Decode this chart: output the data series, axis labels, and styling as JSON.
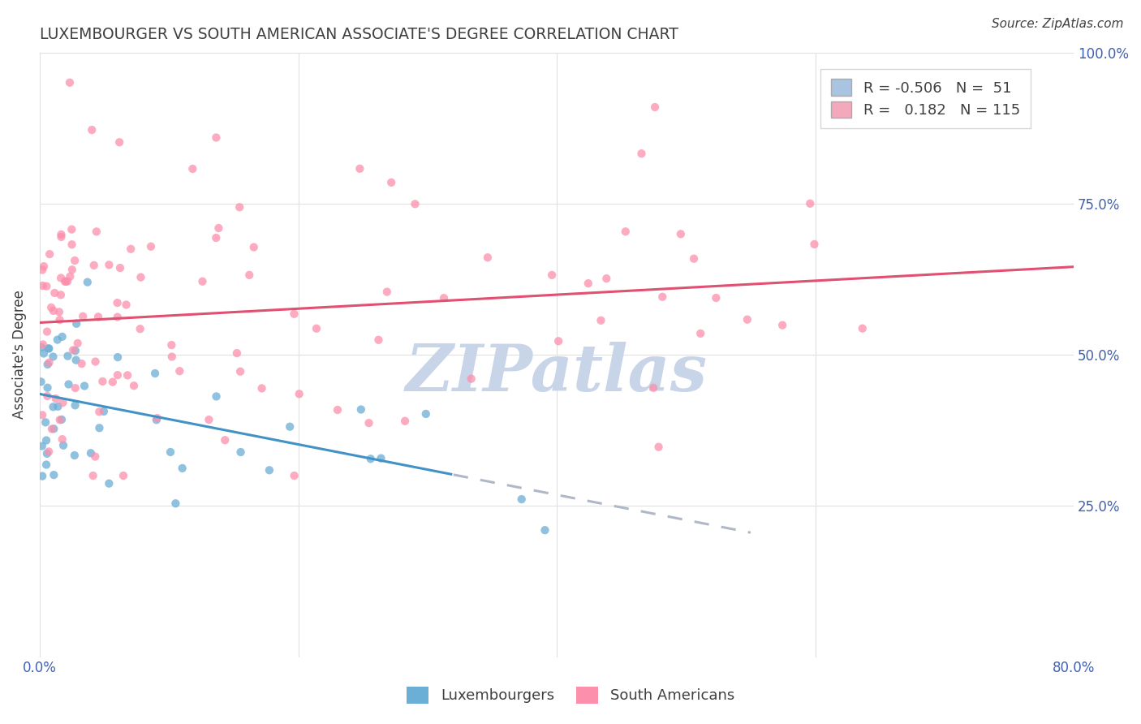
{
  "title": "LUXEMBOURGER VS SOUTH AMERICAN ASSOCIATE'S DEGREE CORRELATION CHART",
  "source": "Source: ZipAtlas.com",
  "ylabel": "Associate's Degree",
  "blue_scatter_color": "#6baed6",
  "pink_scatter_color": "#fc8fab",
  "blue_line_color": "#4292c6",
  "pink_line_color": "#e05070",
  "dashed_line_color": "#b0b8c8",
  "background_color": "#ffffff",
  "watermark_text": "ZIPatlas",
  "watermark_color": "#c8d4e8",
  "grid_color": "#e0e0e0",
  "title_color": "#404040",
  "axis_color": "#4060b0",
  "legend_box_color": "#a8c4e0",
  "legend_pink_color": "#f4a8bc",
  "R1": "-0.506",
  "N1": "51",
  "R2": "0.182",
  "N2": "115"
}
